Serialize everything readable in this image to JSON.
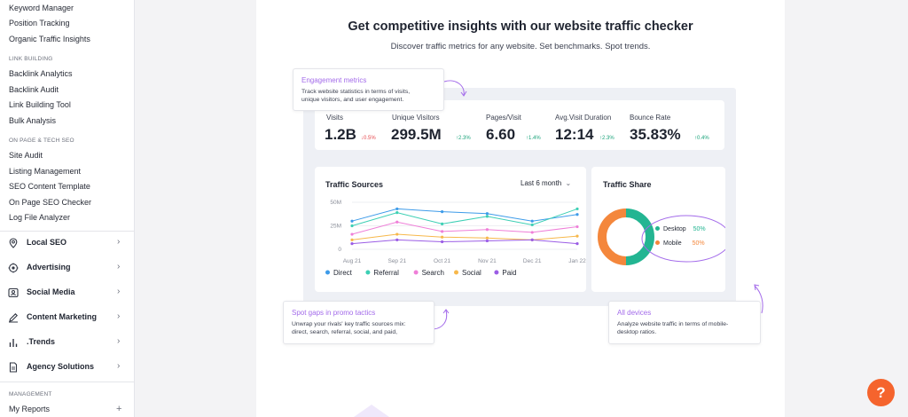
{
  "sidebar": {
    "top_items": [
      "Keyword Manager",
      "Position Tracking",
      "Organic Traffic Insights"
    ],
    "link_building_title": "LINK BUILDING",
    "link_building_items": [
      "Backlink Analytics",
      "Backlink Audit",
      "Link Building Tool",
      "Bulk Analysis"
    ],
    "onpage_title": "ON PAGE & TECH SEO",
    "onpage_items": [
      "Site Audit",
      "Listing Management",
      "SEO Content Template",
      "On Page SEO Checker",
      "Log File Analyzer"
    ],
    "groups": [
      {
        "label": "Local SEO",
        "icon": "location-pin-icon"
      },
      {
        "label": "Advertising",
        "icon": "target-icon"
      },
      {
        "label": "Social Media",
        "icon": "social-box-icon"
      },
      {
        "label": "Content Marketing",
        "icon": "pencil-icon"
      },
      {
        "label": ".Trends",
        "icon": "bar-chart-icon"
      },
      {
        "label": "Agency Solutions",
        "icon": "document-icon"
      }
    ],
    "management_title": "MANAGEMENT",
    "my_reports_label": "My Reports",
    "my_reports_action": "+"
  },
  "hero": {
    "title": "Get competitive insights with our website traffic checker",
    "subtitle": "Discover traffic metrics for any website. Set benchmarks. Spot trends."
  },
  "callouts": {
    "engagement": {
      "title": "Engagement metrics",
      "desc_line1": "Track website statistics in terms of visits,",
      "desc_line2": "unique visitors, and user engagement."
    },
    "promo": {
      "title": "Spot gaps in promo tactics",
      "desc_line1": "Unwrap your rivals' key traffic sources mix:",
      "desc_line2": "direct, search, referral, social, and paid,"
    },
    "devices": {
      "title": "All devices",
      "desc_line1": "Analyze website traffic in terms of mobile-",
      "desc_line2": "desktop ratios."
    }
  },
  "metrics": [
    {
      "label": "Visits",
      "value": "1.2B",
      "delta": "↓0.5%",
      "trend": "down"
    },
    {
      "label": "Unique Visitors",
      "value": "299.5M",
      "delta": "↑2.3%",
      "trend": "up"
    },
    {
      "label": "Pages/Visit",
      "value": "6.60",
      "delta": "↑1.4%",
      "trend": "up"
    },
    {
      "label": "Avg.Visit Duration",
      "value": "12:14",
      "delta": "↑2.3%",
      "trend": "up"
    },
    {
      "label": "Bounce Rate",
      "value": "35.83%",
      "delta": "↑0.4%",
      "trend": "up"
    }
  ],
  "traffic_sources": {
    "title": "Traffic Sources",
    "period_label": "Last 6 month",
    "period_icon": "chevron-down-icon"
  },
  "traffic_share": {
    "title": "Traffic Share",
    "desktop_label": "Desktop",
    "desktop_value": "50%",
    "mobile_label": "Mobile",
    "mobile_value": "50%",
    "desktop_color": "#23b592",
    "mobile_color": "#f4873c"
  },
  "colors": {
    "accent_purple": "#a36bea",
    "help_orange": "#f5642d",
    "up_green": "#1aa37a",
    "down_red": "#e5484d"
  },
  "help_button": {
    "label": "?"
  },
  "chart_data": {
    "type": "line",
    "title": "Traffic Sources",
    "categories": [
      "Aug 21",
      "Sep 21",
      "Oct 21",
      "Nov 21",
      "Dec 21",
      "Jan 22"
    ],
    "ytick_labels": [
      "50M",
      "25M",
      "0"
    ],
    "ylim": [
      0,
      50
    ],
    "series": [
      {
        "name": "Direct",
        "color": "#3d9be9",
        "values": [
          30,
          43,
          40,
          38,
          30,
          37
        ]
      },
      {
        "name": "Referral",
        "color": "#3ccfb4",
        "values": [
          25,
          39,
          27,
          35,
          26,
          43
        ]
      },
      {
        "name": "Search",
        "color": "#ef7fd8",
        "values": [
          16,
          29,
          19,
          21,
          18,
          24
        ]
      },
      {
        "name": "Social",
        "color": "#f7b84b",
        "values": [
          10,
          16,
          13,
          12,
          10,
          14
        ]
      },
      {
        "name": "Paid",
        "color": "#9b5de5",
        "values": [
          6,
          10,
          8,
          9,
          10,
          6
        ]
      }
    ],
    "legend_position": "bottom",
    "grid": true
  }
}
